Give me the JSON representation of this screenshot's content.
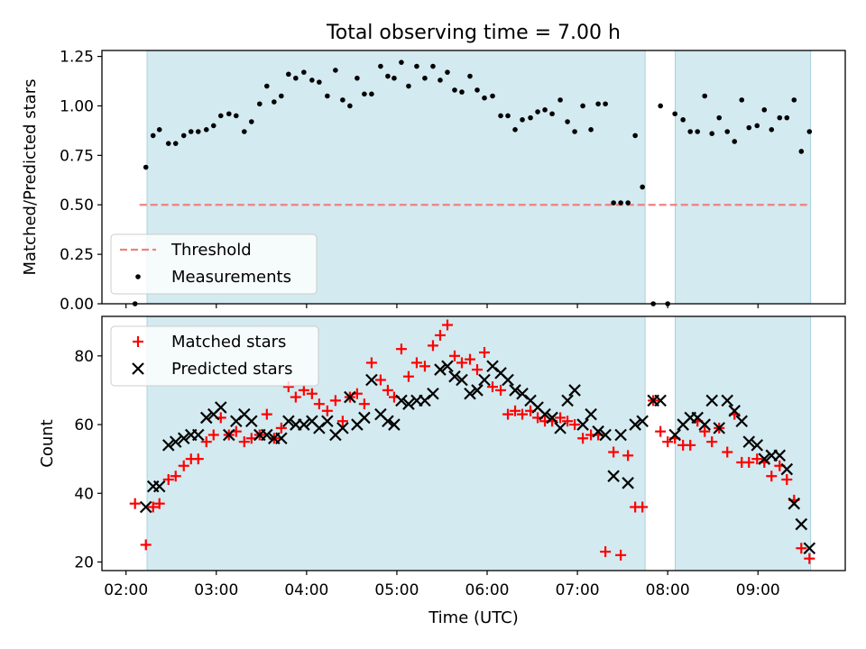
{
  "title": "Total observing time = 7.00 h",
  "xlabel": "Time (UTC)",
  "colors": {
    "band": "#d3eaf0",
    "band_edge": "#a8d4de",
    "threshold": "#f08080",
    "measure": "#000000",
    "matched": "#ff0000",
    "predicted": "#000000"
  },
  "x_ticks": [
    {
      "t": 2.0,
      "label": "02:00"
    },
    {
      "t": 3.0,
      "label": "03:00"
    },
    {
      "t": 4.0,
      "label": "04:00"
    },
    {
      "t": 5.0,
      "label": "05:00"
    },
    {
      "t": 6.0,
      "label": "06:00"
    },
    {
      "t": 7.0,
      "label": "07:00"
    },
    {
      "t": 8.0,
      "label": "08:00"
    },
    {
      "t": 9.0,
      "label": "09:00"
    }
  ],
  "chart_data": [
    {
      "type": "scatter",
      "title": "Total observing time = 7.00 h",
      "xlabel": "",
      "ylabel": "Matched/Predicted stars",
      "xlim": [
        "01:44",
        "09:58"
      ],
      "ylim": [
        0,
        1.28
      ],
      "y_ticks": [
        "0.00",
        "0.25",
        "0.50",
        "0.75",
        "1.00",
        "1.25"
      ],
      "shaded_intervals": [
        [
          "02:14",
          "07:45"
        ],
        [
          "08:05",
          "09:35"
        ]
      ],
      "legend": {
        "position": "lower-left",
        "entries": [
          "Threshold",
          "Measurements"
        ]
      },
      "threshold": {
        "name": "Threshold",
        "y": 0.5,
        "x_range": [
          "02:09",
          "09:35"
        ]
      },
      "series": [
        {
          "name": "Measurements",
          "x": [
            2.1,
            2.22,
            2.3,
            2.37,
            2.47,
            2.55,
            2.64,
            2.72,
            2.8,
            2.89,
            2.97,
            3.05,
            3.14,
            3.22,
            3.31,
            3.39,
            3.48,
            3.56,
            3.64,
            3.72,
            3.8,
            3.88,
            3.97,
            4.06,
            4.14,
            4.23,
            4.32,
            4.4,
            4.48,
            4.56,
            4.64,
            4.72,
            4.82,
            4.9,
            4.97,
            5.05,
            5.13,
            5.22,
            5.31,
            5.4,
            5.48,
            5.56,
            5.64,
            5.72,
            5.81,
            5.89,
            5.97,
            6.06,
            6.15,
            6.23,
            6.31,
            6.39,
            6.48,
            6.56,
            6.64,
            6.72,
            6.81,
            6.89,
            6.97,
            7.06,
            7.15,
            7.23,
            7.31,
            7.4,
            7.48,
            7.56,
            7.64,
            7.72,
            7.84,
            7.92,
            8.0,
            8.08,
            8.17,
            8.25,
            8.33,
            8.41,
            8.49,
            8.57,
            8.66,
            8.74,
            8.82,
            8.9,
            8.99,
            9.07,
            9.15,
            9.24,
            9.32,
            9.4,
            9.48,
            9.57
          ],
          "y": [
            0.0,
            0.69,
            0.85,
            0.88,
            0.81,
            0.81,
            0.85,
            0.87,
            0.87,
            0.88,
            0.9,
            0.95,
            0.96,
            0.95,
            0.87,
            0.92,
            1.01,
            1.1,
            1.02,
            1.05,
            1.16,
            1.14,
            1.17,
            1.13,
            1.12,
            1.05,
            1.18,
            1.03,
            1.0,
            1.14,
            1.06,
            1.06,
            1.2,
            1.15,
            1.14,
            1.22,
            1.1,
            1.2,
            1.14,
            1.2,
            1.13,
            1.17,
            1.08,
            1.07,
            1.15,
            1.08,
            1.04,
            1.05,
            0.95,
            0.95,
            0.88,
            0.93,
            0.94,
            0.97,
            0.98,
            0.96,
            1.03,
            0.92,
            0.87,
            1.0,
            0.88,
            1.01,
            1.01,
            0.51,
            0.51,
            0.51,
            0.85,
            0.59,
            0.0,
            1.0,
            0.0,
            0.96,
            0.93,
            0.87,
            0.87,
            1.05,
            0.86,
            0.94,
            0.87,
            0.82,
            1.03,
            0.89,
            0.9,
            0.98,
            0.88,
            0.94,
            0.94,
            1.03,
            0.77,
            0.87
          ]
        }
      ]
    },
    {
      "type": "scatter",
      "title": "",
      "xlabel": "Time (UTC)",
      "ylabel": "Count",
      "xlim": [
        "01:44",
        "09:58"
      ],
      "ylim": [
        17.5,
        91.5
      ],
      "y_ticks": [
        "20",
        "40",
        "60",
        "80"
      ],
      "shaded_intervals": [
        [
          "02:14",
          "07:45"
        ],
        [
          "08:05",
          "09:35"
        ]
      ],
      "legend": {
        "position": "upper-left",
        "entries": [
          "Matched stars",
          "Predicted stars"
        ]
      },
      "series": [
        {
          "name": "Matched stars",
          "marker": "+",
          "x": [
            2.1,
            2.22,
            2.3,
            2.37,
            2.47,
            2.55,
            2.64,
            2.72,
            2.8,
            2.89,
            2.97,
            3.05,
            3.14,
            3.22,
            3.31,
            3.39,
            3.48,
            3.56,
            3.64,
            3.72,
            3.8,
            3.88,
            3.97,
            4.06,
            4.14,
            4.23,
            4.32,
            4.4,
            4.48,
            4.56,
            4.64,
            4.72,
            4.82,
            4.9,
            4.97,
            5.05,
            5.13,
            5.22,
            5.31,
            5.4,
            5.48,
            5.56,
            5.64,
            5.72,
            5.81,
            5.89,
            5.97,
            6.06,
            6.15,
            6.23,
            6.31,
            6.39,
            6.48,
            6.56,
            6.64,
            6.72,
            6.81,
            6.89,
            6.97,
            7.06,
            7.15,
            7.23,
            7.31,
            7.4,
            7.48,
            7.56,
            7.64,
            7.72,
            7.84,
            7.92,
            8.0,
            8.08,
            8.17,
            8.25,
            8.33,
            8.41,
            8.49,
            8.57,
            8.66,
            8.74,
            8.82,
            8.9,
            8.99,
            9.07,
            9.15,
            9.24,
            9.32,
            9.4,
            9.48,
            9.57
          ],
          "y": [
            37,
            25,
            36,
            37,
            44,
            45,
            48,
            50,
            50,
            55,
            57,
            62,
            57,
            58,
            55,
            56,
            57,
            63,
            56,
            59,
            71,
            68,
            70,
            69,
            66,
            64,
            67,
            61,
            68,
            69,
            66,
            78,
            73,
            70,
            68,
            82,
            74,
            78,
            77,
            83,
            86,
            89,
            80,
            78,
            79,
            76,
            81,
            71,
            70,
            63,
            64,
            63,
            64,
            62,
            61,
            61,
            62,
            61,
            60,
            56,
            57,
            57,
            23,
            52,
            22,
            51,
            36,
            36,
            67,
            58,
            55,
            56,
            54,
            54,
            61,
            58,
            55,
            59,
            52,
            63,
            49,
            49,
            50,
            49,
            45,
            48,
            44,
            38,
            24,
            21
          ]
        },
        {
          "name": "Predicted stars",
          "marker": "x",
          "x": [
            2.22,
            2.3,
            2.37,
            2.47,
            2.55,
            2.64,
            2.72,
            2.8,
            2.89,
            2.97,
            3.05,
            3.14,
            3.22,
            3.31,
            3.39,
            3.48,
            3.56,
            3.64,
            3.72,
            3.8,
            3.88,
            3.97,
            4.06,
            4.14,
            4.23,
            4.32,
            4.4,
            4.48,
            4.56,
            4.64,
            4.72,
            4.82,
            4.9,
            4.97,
            5.05,
            5.13,
            5.22,
            5.31,
            5.4,
            5.48,
            5.56,
            5.64,
            5.72,
            5.81,
            5.89,
            5.97,
            6.06,
            6.15,
            6.23,
            6.31,
            6.39,
            6.48,
            6.56,
            6.64,
            6.72,
            6.81,
            6.89,
            6.97,
            7.06,
            7.15,
            7.23,
            7.31,
            7.4,
            7.48,
            7.56,
            7.64,
            7.72,
            7.84,
            7.92,
            8.08,
            8.17,
            8.25,
            8.33,
            8.41,
            8.49,
            8.57,
            8.66,
            8.74,
            8.82,
            8.9,
            8.99,
            9.07,
            9.15,
            9.24,
            9.32,
            9.4,
            9.48,
            9.57
          ],
          "y": [
            36,
            42,
            42,
            54,
            55,
            56,
            57,
            57,
            62,
            63,
            65,
            57,
            61,
            63,
            61,
            57,
            57,
            56,
            56,
            61,
            60,
            60,
            61,
            59,
            61,
            57,
            59,
            68,
            60,
            62,
            73,
            63,
            61,
            60,
            67,
            66,
            67,
            67,
            69,
            76,
            77,
            74,
            73,
            69,
            70,
            73,
            77,
            75,
            73,
            70,
            69,
            67,
            65,
            63,
            62,
            59,
            67,
            70,
            60,
            63,
            58,
            57,
            45,
            57,
            43,
            60,
            61,
            67,
            67,
            57,
            60,
            62,
            62,
            60,
            67,
            59,
            67,
            64,
            61,
            55,
            54,
            50,
            51,
            51,
            47,
            37,
            31,
            24
          ]
        }
      ]
    }
  ]
}
